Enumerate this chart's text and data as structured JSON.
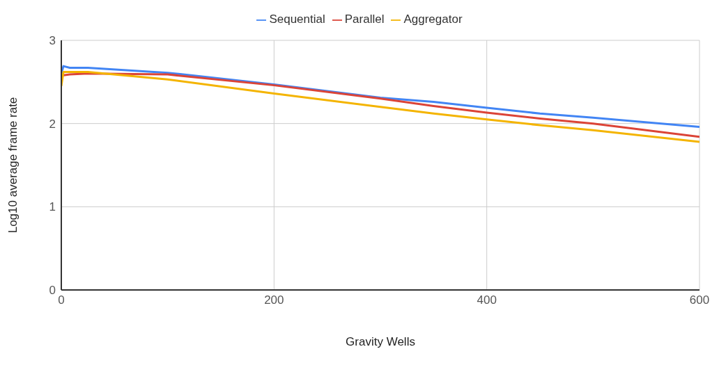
{
  "chart_data": {
    "type": "line",
    "xlabel": "Gravity Wells",
    "ylabel": "Log10 average frame rate",
    "xlim": [
      0,
      600
    ],
    "xticks": [
      0,
      200,
      400,
      600
    ],
    "ylim": [
      0,
      3
    ],
    "yticks": [
      0,
      1,
      2,
      3
    ],
    "grid": true,
    "legend": "top",
    "marker": "none",
    "line_style": "solid",
    "x": [
      0,
      2,
      8,
      25,
      100,
      200,
      300,
      350,
      400,
      450,
      500,
      600
    ],
    "series": [
      {
        "name": "Sequential",
        "color": "#4285f4",
        "values": [
          2.6,
          2.69,
          2.67,
          2.67,
          2.61,
          2.47,
          2.31,
          2.26,
          2.19,
          2.12,
          2.07,
          1.96
        ]
      },
      {
        "name": "Parallel",
        "color": "#db4437",
        "values": [
          null,
          2.58,
          2.59,
          2.6,
          2.59,
          2.46,
          2.3,
          2.21,
          2.13,
          2.06,
          2.0,
          1.84
        ]
      },
      {
        "name": "Aggregator",
        "color": "#f4b400",
        "values": [
          2.45,
          2.62,
          2.62,
          2.62,
          2.53,
          2.36,
          2.2,
          2.12,
          2.05,
          1.98,
          1.92,
          1.78
        ]
      }
    ]
  }
}
